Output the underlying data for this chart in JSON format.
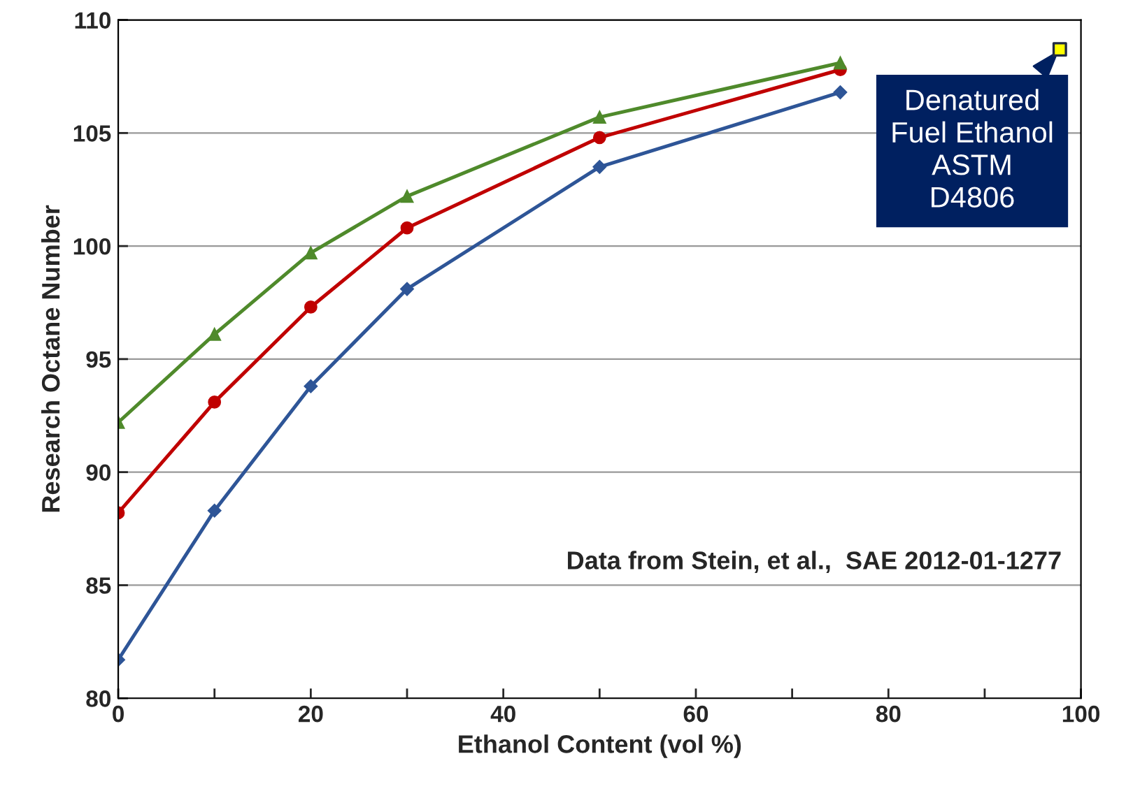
{
  "chart_data": {
    "type": "line",
    "xlabel": "Ethanol Content (vol %)",
    "ylabel": "Research Octane Number",
    "xlim": [
      0,
      100
    ],
    "ylim": [
      80,
      110
    ],
    "xticks": [
      0,
      {
        "value": 10,
        "label": null
      },
      20,
      {
        "value": 30,
        "label": null
      },
      40,
      {
        "value": 50,
        "label": null
      },
      60,
      {
        "value": 70,
        "label": null
      },
      80,
      {
        "value": 90,
        "label": null
      },
      100
    ],
    "yticks": [
      80,
      85,
      90,
      95,
      100,
      105,
      110
    ],
    "grid": "y",
    "line_style": "solid",
    "series": [
      {
        "color": "#2e5597",
        "marker": "diamond",
        "x": [
          0,
          10,
          20,
          30,
          50,
          75
        ],
        "values": [
          81.7,
          88.3,
          93.8,
          98.1,
          103.5,
          106.8
        ]
      },
      {
        "color": "#c00000",
        "marker": "circle",
        "x": [
          0,
          10,
          20,
          30,
          50,
          75
        ],
        "values": [
          88.2,
          93.1,
          97.3,
          100.8,
          104.8,
          107.8
        ]
      },
      {
        "color": "#4f8a2b",
        "marker": "triangle",
        "x": [
          0,
          10,
          20,
          30,
          50,
          75
        ],
        "values": [
          92.2,
          96.1,
          99.7,
          102.2,
          105.7,
          108.1
        ]
      },
      {
        "type": "scatter",
        "color": "#ffff00",
        "marker": "square",
        "x": [
          97.8
        ],
        "values": [
          108.7
        ]
      }
    ],
    "annotations": [
      {
        "text": "Denatured\nFuel Ethanol\nASTM\nD4806",
        "x": 97.8,
        "y": 108.7
      },
      "Data from Stein, et al.,  SAE 2012-01-1277"
    ]
  }
}
